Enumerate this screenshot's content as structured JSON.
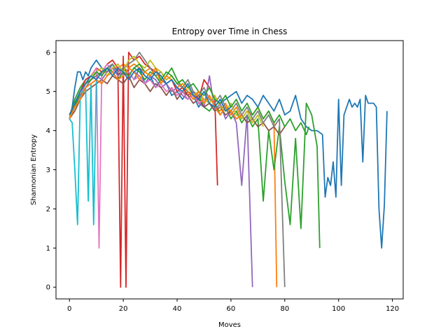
{
  "chart_data": {
    "type": "line",
    "title": "Entropy over Time in Chess",
    "xlabel": "Moves",
    "ylabel": "Shannonian Entropy",
    "xlim": [
      -5,
      124
    ],
    "ylim": [
      -0.3,
      6.3
    ],
    "xticks": [
      0,
      20,
      40,
      60,
      80,
      100,
      120
    ],
    "yticks": [
      0,
      1,
      2,
      3,
      4,
      5,
      6
    ],
    "grid": false,
    "legend": "none",
    "palette": [
      "#1f77b4",
      "#ff7f0e",
      "#2ca02c",
      "#d62728",
      "#9467bd",
      "#8c564b",
      "#e377c2",
      "#7f7f7f",
      "#bcbd22",
      "#17becf"
    ],
    "series": [
      {
        "x": [
          0,
          1,
          2,
          3,
          4,
          5,
          6,
          7,
          8,
          9,
          10,
          12,
          14,
          16,
          18,
          20,
          22,
          24,
          26,
          28,
          30,
          32,
          34,
          36,
          38,
          40,
          42,
          44,
          46,
          48,
          50,
          52,
          54,
          56,
          58,
          60,
          62,
          64,
          66,
          68,
          70,
          72,
          74,
          76,
          78,
          80,
          82,
          84,
          86,
          88,
          90,
          92,
          94,
          95,
          96,
          97,
          98,
          99,
          100,
          101,
          102,
          103,
          104,
          105,
          106,
          107,
          108,
          109,
          110,
          111,
          112,
          113,
          114,
          115,
          116,
          117,
          118
        ],
        "y": [
          4.3,
          4.6,
          5.1,
          5.5,
          5.5,
          5.3,
          5.5,
          5.4,
          5.6,
          5.7,
          5.8,
          5.6,
          5.5,
          5.7,
          5.4,
          5.6,
          5.5,
          5.3,
          5.6,
          5.2,
          5.4,
          5.1,
          5.3,
          5.2,
          4.9,
          5.0,
          4.8,
          5.0,
          4.9,
          4.6,
          4.8,
          4.7,
          4.5,
          4.7,
          4.8,
          4.9,
          5.0,
          4.7,
          4.9,
          4.8,
          4.6,
          4.9,
          4.7,
          4.5,
          4.8,
          4.4,
          4.5,
          4.9,
          4.3,
          4.1,
          4.0,
          4.0,
          3.9,
          2.3,
          2.8,
          2.6,
          3.2,
          2.3,
          4.8,
          2.6,
          4.4,
          4.6,
          4.8,
          4.6,
          4.7,
          4.6,
          4.8,
          3.2,
          4.9,
          4.7,
          4.7,
          4.7,
          4.6,
          2.0,
          1.0,
          2.1,
          4.5
        ],
        "color_index": 0
      },
      {
        "x": [
          0,
          2,
          4,
          6,
          8,
          10,
          12,
          14,
          16,
          18,
          20,
          22,
          24,
          26,
          28,
          30,
          32,
          34,
          36,
          38,
          40,
          42,
          44,
          46,
          48,
          50,
          52,
          54,
          56,
          58,
          60,
          62,
          64,
          66,
          68,
          70,
          72,
          74,
          76,
          77
        ],
        "y": [
          4.4,
          4.7,
          5.0,
          5.2,
          5.3,
          5.4,
          5.5,
          5.5,
          5.6,
          5.6,
          5.7,
          5.6,
          5.7,
          5.6,
          5.5,
          5.6,
          5.4,
          5.5,
          5.3,
          5.4,
          5.2,
          5.1,
          4.9,
          5.0,
          4.8,
          4.7,
          4.9,
          4.6,
          4.5,
          4.7,
          4.4,
          4.6,
          4.3,
          4.5,
          4.4,
          4.6,
          4.3,
          4.5,
          4.2,
          0.0
        ],
        "color_index": 1
      },
      {
        "x": [
          0,
          2,
          4,
          6,
          8,
          10,
          12,
          14,
          16,
          18,
          20,
          22,
          24,
          26,
          28,
          30,
          32,
          34,
          36,
          38,
          40,
          42,
          44,
          46,
          48,
          50,
          52,
          54,
          56,
          58,
          60,
          62,
          64,
          66,
          68,
          70,
          72,
          74,
          76,
          78,
          80,
          82,
          84,
          86,
          88,
          90,
          92,
          93
        ],
        "y": [
          4.3,
          4.8,
          5.1,
          5.3,
          5.4,
          5.5,
          5.4,
          5.6,
          5.7,
          5.5,
          5.6,
          5.4,
          5.6,
          5.5,
          5.3,
          5.5,
          5.4,
          5.2,
          5.4,
          5.6,
          5.3,
          5.1,
          5.0,
          4.8,
          4.9,
          4.6,
          4.5,
          4.7,
          4.4,
          4.6,
          4.3,
          4.5,
          4.2,
          4.4,
          4.1,
          4.3,
          2.2,
          4.0,
          3.0,
          4.1,
          2.7,
          1.6,
          3.8,
          1.5,
          4.7,
          4.4,
          3.6,
          1.0
        ],
        "color_index": 2
      },
      {
        "x": [
          0,
          2,
          4,
          6,
          8,
          10,
          12,
          14,
          16,
          18,
          19,
          20,
          21,
          22,
          24,
          26,
          28,
          30,
          32,
          34,
          36,
          38,
          40,
          42,
          44,
          46,
          48,
          50,
          52,
          54,
          55
        ],
        "y": [
          4.4,
          4.7,
          5.0,
          5.3,
          5.4,
          5.6,
          5.5,
          5.7,
          5.8,
          5.6,
          0.0,
          5.9,
          0.0,
          6.0,
          5.8,
          5.9,
          5.7,
          5.6,
          5.5,
          5.4,
          5.2,
          5.3,
          5.0,
          5.1,
          4.9,
          5.0,
          4.8,
          5.3,
          5.1,
          4.8,
          2.6
        ],
        "color_index": 3
      },
      {
        "x": [
          0,
          2,
          4,
          6,
          8,
          10,
          12,
          14,
          16,
          18,
          20,
          22,
          24,
          26,
          28,
          30,
          32,
          34,
          36,
          38,
          40,
          42,
          44,
          46,
          48,
          50,
          52,
          54,
          56,
          58,
          60,
          62,
          64,
          66,
          68
        ],
        "y": [
          4.3,
          4.6,
          4.9,
          5.1,
          5.3,
          5.4,
          5.3,
          5.5,
          5.6,
          5.4,
          5.5,
          5.3,
          5.5,
          5.4,
          5.2,
          5.4,
          5.3,
          5.1,
          5.2,
          5.0,
          5.1,
          4.9,
          4.8,
          5.0,
          4.7,
          4.6,
          5.4,
          4.5,
          4.7,
          4.3,
          4.5,
          4.2,
          2.6,
          4.4,
          0.0
        ],
        "color_index": 4
      },
      {
        "x": [
          0,
          2,
          4,
          6,
          8,
          10,
          12,
          14,
          16,
          18,
          20,
          22,
          24,
          26,
          28,
          30,
          32,
          34,
          36,
          38,
          40,
          42,
          44,
          46,
          48,
          50,
          52,
          54,
          56,
          58,
          60,
          62,
          64,
          66,
          68,
          70,
          72,
          74,
          76,
          78,
          80
        ],
        "y": [
          4.3,
          4.5,
          4.8,
          5.0,
          5.1,
          5.2,
          5.3,
          5.2,
          5.4,
          5.3,
          5.2,
          5.4,
          5.1,
          5.3,
          5.2,
          5.0,
          5.2,
          5.1,
          4.9,
          5.1,
          4.8,
          5.0,
          4.9,
          4.7,
          4.8,
          4.6,
          4.7,
          4.5,
          4.6,
          4.4,
          4.5,
          4.3,
          4.4,
          4.2,
          4.3,
          4.1,
          4.2,
          4.0,
          4.1,
          3.9,
          4.1
        ],
        "color_index": 5
      },
      {
        "x": [
          0,
          2,
          4,
          6,
          8,
          10,
          11,
          12,
          14,
          16,
          18,
          20,
          22,
          24,
          26,
          28,
          30,
          32,
          34,
          36,
          38,
          40,
          42,
          44,
          46,
          48,
          50
        ],
        "y": [
          4.4,
          4.6,
          4.9,
          5.2,
          5.4,
          5.6,
          1.0,
          5.5,
          5.7,
          5.5,
          5.6,
          5.4,
          5.5,
          5.3,
          5.4,
          5.2,
          5.3,
          5.1,
          5.2,
          5.0,
          5.1,
          4.9,
          5.0,
          4.8,
          4.9,
          4.7,
          4.8
        ],
        "color_index": 6
      },
      {
        "x": [
          0,
          2,
          4,
          6,
          8,
          10,
          12,
          14,
          16,
          18,
          20,
          22,
          24,
          26,
          28,
          30,
          32,
          34,
          36,
          38,
          40,
          42,
          44,
          46,
          48,
          50,
          52,
          54,
          56,
          58,
          60,
          62,
          64,
          66,
          68,
          70,
          72,
          74,
          76,
          78,
          80
        ],
        "y": [
          4.3,
          4.6,
          4.9,
          5.1,
          5.3,
          5.4,
          5.5,
          5.6,
          5.7,
          5.5,
          5.6,
          5.7,
          5.8,
          6.0,
          5.8,
          5.6,
          5.4,
          5.5,
          5.3,
          5.4,
          5.2,
          5.1,
          5.3,
          5.0,
          4.9,
          5.1,
          4.8,
          4.7,
          4.9,
          4.6,
          4.5,
          4.7,
          4.4,
          4.6,
          4.3,
          4.5,
          4.2,
          4.4,
          4.1,
          4.3,
          0.0
        ],
        "color_index": 7
      },
      {
        "x": [
          0,
          2,
          4,
          6,
          8,
          10,
          12,
          14,
          16,
          18,
          20,
          22,
          24,
          26,
          28,
          30,
          32,
          34,
          36,
          38,
          40,
          42,
          44,
          46,
          48,
          50,
          52,
          54,
          56,
          58,
          60,
          62,
          64,
          66,
          68,
          70,
          72
        ],
        "y": [
          4.3,
          4.7,
          5.0,
          5.2,
          5.4,
          5.5,
          5.6,
          5.4,
          5.6,
          5.7,
          5.5,
          5.8,
          5.9,
          5.7,
          5.6,
          5.8,
          5.6,
          5.5,
          5.3,
          5.4,
          5.2,
          5.3,
          5.1,
          4.9,
          5.0,
          4.8,
          4.7,
          4.9,
          4.6,
          4.5,
          4.7,
          4.4,
          4.3,
          4.5,
          4.2,
          4.4,
          4.1
        ],
        "color_index": 8
      },
      {
        "x": [
          0,
          1,
          2,
          3,
          4,
          5,
          6,
          7,
          8,
          9,
          10
        ],
        "y": [
          4.3,
          4.2,
          3.0,
          1.6,
          4.8,
          5.0,
          5.1,
          2.2,
          5.2,
          1.6,
          5.3
        ],
        "color_index": 9
      },
      {
        "x": [
          0,
          2,
          4,
          6,
          8,
          10,
          12,
          14,
          16,
          18,
          20,
          22,
          24,
          26,
          28,
          30,
          32,
          34,
          36,
          38,
          40,
          42,
          44,
          46,
          48,
          50,
          52,
          54,
          56,
          58,
          60,
          62,
          64,
          66,
          68,
          70,
          72,
          74,
          76,
          78,
          80,
          82,
          84,
          86,
          88,
          89
        ],
        "y": [
          4.4,
          4.6,
          5.0,
          5.2,
          5.3,
          5.5,
          5.4,
          5.6,
          5.5,
          5.3,
          5.5,
          5.4,
          5.6,
          5.7,
          5.5,
          5.4,
          5.6,
          5.3,
          5.5,
          5.4,
          5.2,
          5.3,
          5.1,
          5.2,
          5.0,
          4.9,
          5.1,
          4.8,
          4.7,
          4.9,
          4.6,
          4.8,
          4.5,
          4.7,
          4.4,
          4.6,
          4.3,
          4.5,
          4.2,
          4.4,
          4.1,
          4.3,
          4.0,
          4.2,
          3.9,
          4.1
        ],
        "color_index": 2
      },
      {
        "x": [
          0,
          2,
          4,
          6,
          8,
          10,
          12,
          14,
          16,
          18,
          20,
          22,
          24,
          26,
          28,
          30,
          32,
          34,
          36,
          38,
          40,
          42,
          44,
          46,
          48,
          50,
          52,
          54,
          56,
          58,
          60,
          62,
          64
        ],
        "y": [
          4.3,
          4.6,
          4.8,
          5.1,
          5.2,
          5.3,
          5.2,
          5.4,
          5.5,
          5.3,
          5.4,
          5.6,
          5.5,
          5.3,
          5.5,
          5.4,
          5.6,
          5.2,
          5.4,
          5.3,
          5.1,
          5.2,
          5.0,
          4.8,
          5.0,
          4.7,
          4.9,
          4.6,
          4.4,
          4.6,
          4.5,
          4.3,
          4.4
        ],
        "color_index": 1
      },
      {
        "x": [
          0,
          2,
          4,
          6,
          8,
          10,
          12,
          14,
          16,
          18,
          20,
          22,
          24,
          26,
          28,
          30,
          32,
          34,
          36,
          38,
          40,
          42,
          44,
          46,
          48,
          50,
          52,
          54,
          56,
          58,
          60
        ],
        "y": [
          4.4,
          4.7,
          5.0,
          5.2,
          5.4,
          5.3,
          5.5,
          5.6,
          5.4,
          5.6,
          5.5,
          5.3,
          5.5,
          5.6,
          5.4,
          5.3,
          5.5,
          5.4,
          5.2,
          5.3,
          5.1,
          5.0,
          5.2,
          4.9,
          4.8,
          5.0,
          4.7,
          4.6,
          4.8,
          4.5,
          4.6
        ],
        "color_index": 0
      }
    ]
  }
}
